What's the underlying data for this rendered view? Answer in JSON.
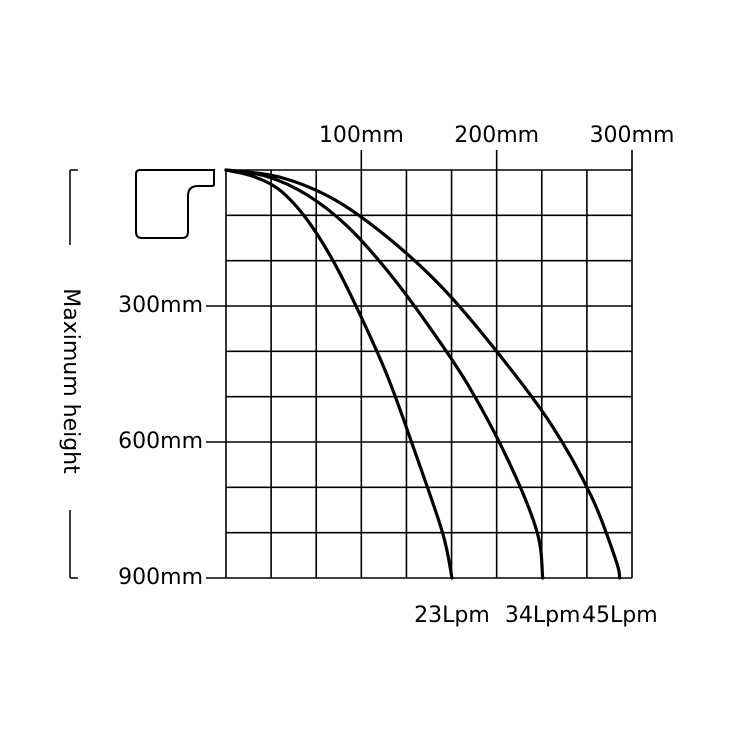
{
  "chart_data": {
    "type": "line",
    "title": "",
    "xlabel": "",
    "ylabel": "Maximum height",
    "x_ticks": [
      {
        "value": 100,
        "label": "100mm"
      },
      {
        "value": 200,
        "label": "200mm"
      },
      {
        "value": 300,
        "label": "300mm"
      }
    ],
    "y_ticks": [
      {
        "value": 300,
        "label": "300mm"
      },
      {
        "value": 600,
        "label": "600mm"
      },
      {
        "value": 900,
        "label": "900mm"
      }
    ],
    "xlim": [
      0,
      300
    ],
    "ylim": [
      0,
      900
    ],
    "x_unit": "mm",
    "y_unit": "mm",
    "grid": true,
    "legend": "end-labels",
    "series": [
      {
        "name": "23Lpm",
        "points": [
          [
            0,
            0
          ],
          [
            20,
            14
          ],
          [
            40,
            45
          ],
          [
            60,
            110
          ],
          [
            80,
            205
          ],
          [
            100,
            325
          ],
          [
            120,
            460
          ],
          [
            140,
            625
          ],
          [
            160,
            800
          ],
          [
            167,
            900
          ]
        ]
      },
      {
        "name": "34Lpm",
        "points": [
          [
            0,
            0
          ],
          [
            30,
            14
          ],
          [
            60,
            55
          ],
          [
            90,
            125
          ],
          [
            120,
            225
          ],
          [
            150,
            345
          ],
          [
            180,
            480
          ],
          [
            210,
            650
          ],
          [
            230,
            800
          ],
          [
            234,
            900
          ]
        ]
      },
      {
        "name": "45Lpm",
        "points": [
          [
            0,
            0
          ],
          [
            40,
            16
          ],
          [
            80,
            65
          ],
          [
            120,
            150
          ],
          [
            160,
            260
          ],
          [
            200,
            400
          ],
          [
            240,
            560
          ],
          [
            270,
            720
          ],
          [
            288,
            860
          ],
          [
            291,
            900
          ]
        ]
      }
    ],
    "colors": {
      "line": "#000000",
      "grid": "#000000",
      "background": "#ffffff"
    },
    "icon": "gutter-outlet-icon"
  }
}
